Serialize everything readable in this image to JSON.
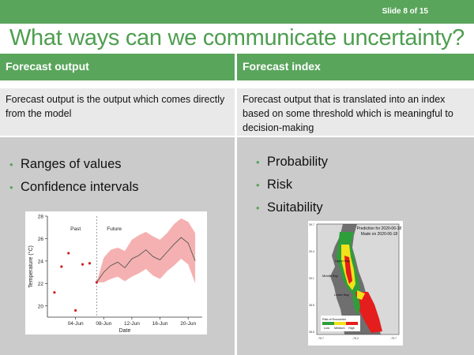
{
  "slide": {
    "number_label": "Slide 8 of 15"
  },
  "title": "What ways can we communicate uncertainty?",
  "columns": [
    {
      "header": "Forecast output",
      "description": "Forecast output is the output which comes directly from the model",
      "bullets": [
        "Ranges of values",
        "Confidence intervals"
      ]
    },
    {
      "header": "Forecast index",
      "description": "Forecast output that is translated into an index based on some threshold which is meaningful to decision-making",
      "bullets": [
        "Probability",
        "Risk",
        "Suitability"
      ]
    }
  ],
  "colors": {
    "accent": "#5aa55c",
    "desc_bg": "#e9e9e9",
    "body_bg": "#cbcbcb"
  },
  "chart_data": {
    "type": "line",
    "ylabel": "Temperature (°C)",
    "xlabel": "Date",
    "ylim": [
      19,
      28
    ],
    "xlim": [
      0,
      22
    ],
    "y_ticks": [
      20,
      22,
      24,
      26,
      28
    ],
    "x_ticks": [
      {
        "x": 4,
        "label": "04-Jun"
      },
      {
        "x": 8,
        "label": "08-Jun"
      },
      {
        "x": 12,
        "label": "12-Jun"
      },
      {
        "x": 16,
        "label": "16-Jun"
      },
      {
        "x": 20,
        "label": "20-Jun"
      }
    ],
    "annotations": {
      "past": "Past",
      "future": "Future",
      "divider_x": 7
    },
    "past_points": {
      "x": [
        1,
        2,
        3,
        4,
        5,
        6,
        7
      ],
      "y": [
        21.2,
        23.5,
        24.7,
        19.6,
        23.7,
        23.8,
        22.1
      ]
    },
    "forecast": {
      "x": [
        7,
        8,
        9,
        10,
        11,
        12,
        13,
        14,
        15,
        16,
        17,
        18,
        19,
        20,
        21
      ],
      "median": [
        22.1,
        23.0,
        23.6,
        23.9,
        23.4,
        24.2,
        24.5,
        25.0,
        24.4,
        24.1,
        24.8,
        25.5,
        26.1,
        25.6,
        24.0
      ],
      "upper": [
        22.1,
        24.3,
        25.0,
        25.2,
        24.9,
        25.9,
        26.3,
        26.6,
        26.2,
        25.9,
        26.5,
        27.3,
        27.8,
        27.5,
        26.5
      ],
      "lower": [
        22.1,
        22.1,
        22.4,
        22.6,
        22.2,
        22.6,
        22.9,
        23.3,
        22.7,
        22.4,
        23.1,
        23.6,
        24.2,
        23.7,
        22.0
      ]
    }
  },
  "map": {
    "title_line1": "Prediction for 2020-06-18",
    "title_line2": "Made on 2020-06-18",
    "labels": [
      "Upper Bay",
      "Middle Bay",
      "Lower Bay"
    ],
    "legend_title": "Risk of Encounter",
    "legend_levels": [
      "Low",
      "Medium",
      "High"
    ],
    "level_colors": [
      "#2e9e3a",
      "#f2e21a",
      "#e41d1d"
    ],
    "lat_ticks": [
      "39.7",
      "39.4",
      "39.1",
      "38.8",
      "38.5"
    ],
    "lon_ticks": [
      "-76.7",
      "-76.2",
      "-75.7"
    ]
  }
}
